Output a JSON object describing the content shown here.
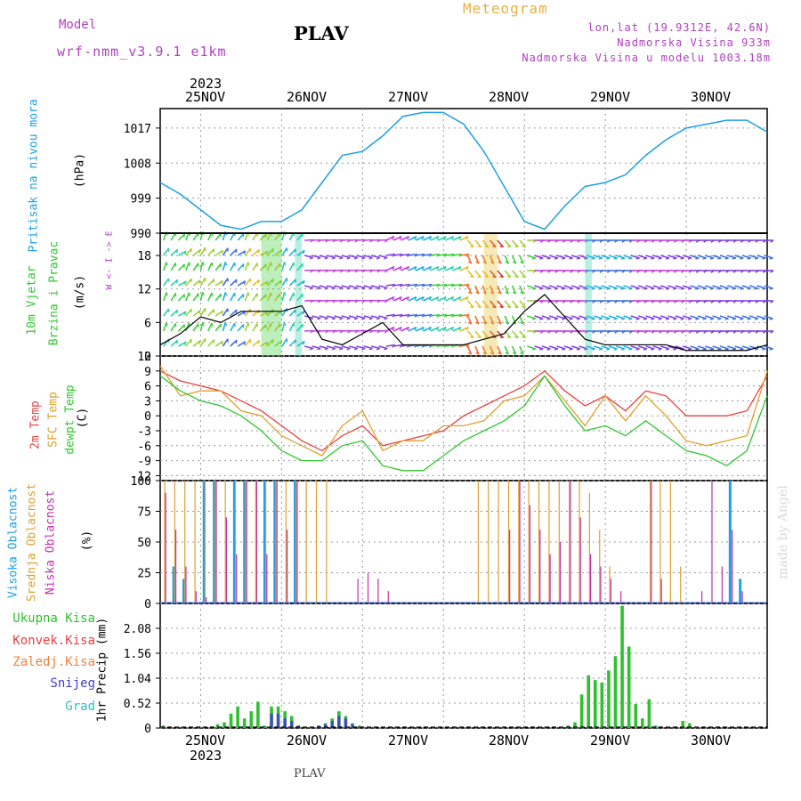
{
  "header": {
    "model_label": "Model",
    "model_name": "wrf-nmm_v3.9.1 e1km",
    "station": "PLAV",
    "title": "Meteogram",
    "lonlat": "lon,lat (19.9312E, 42.6N)",
    "elevation": "Nadmorska Visina 933m",
    "model_elevation": "Nadmorska Visina u modelu 1003.18m",
    "footer_station": "PLAV",
    "watermark": "made by Angel"
  },
  "colors": {
    "pressure": "#1ea0e6",
    "temp2m": "#e84040",
    "sfc_temp": "#e0a030",
    "dewpoint": "#30c830",
    "high_cloud": "#1ea0e6",
    "mid_cloud": "#e0a030",
    "low_cloud": "#c030b0",
    "precip_total": "#30c030",
    "conv": "#e84040",
    "snow": "#4040d0",
    "grad": "#30c0c0"
  },
  "x_axis": {
    "year": "2023",
    "dates": [
      "25NOV",
      "26NOV",
      "27NOV",
      "28NOV",
      "29NOV",
      "30NOV"
    ]
  },
  "panels": {
    "pressure": {
      "label": "Pritisak na nivou mora",
      "unit": "(hPa)",
      "ticks": [
        "1017",
        "1008",
        "999",
        "990"
      ]
    },
    "wind": {
      "label1": "10m Vjetar",
      "label2": "Brzina i Pravac",
      "unit": "(m/s)",
      "ticks": [
        "18",
        "12",
        "6",
        "0"
      ],
      "compass": "W <- I -> E"
    },
    "temp": {
      "label1": "2m Temp",
      "label2": "SFC Temp",
      "label3": "dewpt Temp",
      "unit": "(C)",
      "ticks": [
        "12",
        "9",
        "6",
        "3",
        "0",
        "-3",
        "-6",
        "-9",
        "-12"
      ]
    },
    "cloud": {
      "label1": "Visoka Oblacnost",
      "label2": "Srednja Oblacnost",
      "label3": "Niska Oblacnost",
      "unit": "(%)",
      "ticks": [
        "100",
        "75",
        "50",
        "25",
        "0"
      ]
    },
    "precip": {
      "unit": "1hr Precip (mm)",
      "ticks": [
        "2.08",
        "1.56",
        "1.04",
        "0.52",
        "0"
      ],
      "legend": [
        "Ukupna Kisa",
        "Konvek.Kisa",
        "Zaledj.Kisa",
        "Snijeg",
        "Grad"
      ]
    }
  },
  "chart_data": [
    {
      "type": "line",
      "title": "Pritisak na nivou mora",
      "ylabel": "(hPa)",
      "ylim": [
        990,
        1022
      ],
      "x": [
        0,
        6,
        12,
        18,
        24,
        30,
        36,
        42,
        48,
        54,
        60,
        66,
        72,
        78,
        84,
        90,
        96,
        102,
        108,
        114,
        120,
        126,
        132,
        138,
        144,
        150,
        156,
        162,
        168,
        174,
        180
      ],
      "series": [
        {
          "values": [
            1003,
            1000,
            996,
            992,
            991,
            993,
            993,
            996,
            1003,
            1010,
            1011,
            1015,
            1020,
            1021,
            1021,
            1018,
            1011,
            1002,
            993,
            991,
            997,
            1002,
            1003,
            1005,
            1010,
            1014,
            1017,
            1018,
            1019,
            1019,
            1016
          ]
        }
      ]
    },
    {
      "type": "line",
      "title": "10m Vjetar",
      "ylabel": "(m/s)",
      "ylim": [
        0,
        22
      ],
      "x": [
        0,
        6,
        12,
        18,
        24,
        30,
        36,
        42,
        48,
        54,
        60,
        66,
        72,
        78,
        84,
        90,
        96,
        102,
        108,
        114,
        120,
        126,
        132,
        138,
        144,
        150,
        156,
        162,
        168,
        174,
        180
      ],
      "series": [
        {
          "values": [
            2,
            4,
            7,
            6,
            8,
            8,
            8,
            9,
            3,
            2,
            4,
            6,
            2,
            2,
            2,
            2,
            3,
            4,
            8,
            11,
            7,
            3,
            2,
            2,
            2,
            2,
            1,
            1,
            1,
            1,
            2
          ]
        }
      ]
    },
    {
      "type": "line",
      "title": "2m Temp / SFC Temp / dewpt Temp",
      "ylabel": "(C)",
      "ylim": [
        -13,
        12
      ],
      "x": [
        0,
        6,
        12,
        18,
        24,
        30,
        36,
        42,
        48,
        54,
        60,
        66,
        72,
        78,
        84,
        90,
        96,
        102,
        108,
        114,
        120,
        126,
        132,
        138,
        144,
        150,
        156,
        162,
        168,
        174,
        180
      ],
      "series": [
        {
          "name": "2m Temp",
          "values": [
            9,
            7,
            6,
            5,
            3,
            1,
            -2,
            -5,
            -7,
            -4,
            -2,
            -6,
            -5,
            -4,
            -3,
            0,
            2,
            4,
            6,
            9,
            5,
            2,
            4,
            1,
            5,
            4,
            0,
            0,
            0,
            1,
            8
          ]
        },
        {
          "name": "SFC Temp",
          "values": [
            10,
            4,
            5,
            5,
            1,
            0,
            -4,
            -6,
            -8,
            -2,
            1,
            -7,
            -5,
            -5,
            -2,
            -2,
            -1,
            3,
            4,
            8,
            3,
            -2,
            4,
            -1,
            4,
            0,
            -5,
            -6,
            -5,
            -4,
            9
          ]
        },
        {
          "name": "dewpt Temp",
          "values": [
            8,
            5,
            3,
            2,
            0,
            -3,
            -7,
            -9,
            -9,
            -6,
            -5,
            -10,
            -11,
            -11,
            -8,
            -5,
            -3,
            -1,
            2,
            8,
            2,
            -3,
            -2,
            -4,
            -1,
            -4,
            -7,
            -8,
            -10,
            -7,
            4
          ]
        }
      ]
    },
    {
      "type": "bar",
      "title": "Visoka / Srednja / Niska Oblacnost",
      "ylabel": "(%)",
      "ylim": [
        0,
        100
      ],
      "x": [
        1,
        4,
        7,
        10,
        13,
        16,
        19,
        22,
        25,
        28,
        31,
        34,
        37,
        40,
        43,
        46,
        49,
        52,
        55,
        58,
        61,
        64,
        67,
        70,
        73,
        76,
        79,
        82,
        85,
        88,
        91,
        94,
        97,
        100,
        103,
        106,
        109,
        112,
        115,
        118,
        121,
        124,
        127,
        130,
        133,
        136,
        139,
        142,
        145,
        148,
        151,
        154,
        157,
        160,
        163,
        166,
        169,
        172,
        175,
        178
      ],
      "series": [
        {
          "name": "Visoka Oblacnost",
          "values": [
            0,
            30,
            20,
            0,
            100,
            100,
            0,
            100,
            100,
            0,
            100,
            100,
            0,
            100,
            0,
            0,
            0,
            0,
            0,
            0,
            0,
            0,
            0,
            0,
            0,
            0,
            0,
            0,
            0,
            0,
            0,
            0,
            0,
            0,
            0,
            0,
            0,
            0,
            0,
            0,
            0,
            0,
            0,
            0,
            0,
            0,
            0,
            0,
            0,
            0,
            0,
            0,
            0,
            0,
            0,
            0,
            100,
            20,
            0,
            0
          ]
        },
        {
          "name": "Srednja Oblacnost",
          "values": [
            100,
            100,
            100,
            100,
            100,
            100,
            100,
            100,
            100,
            100,
            100,
            100,
            100,
            100,
            100,
            100,
            100,
            0,
            0,
            0,
            0,
            0,
            0,
            0,
            0,
            0,
            0,
            0,
            0,
            0,
            0,
            100,
            100,
            100,
            100,
            100,
            100,
            100,
            100,
            100,
            100,
            100,
            90,
            60,
            30,
            0,
            0,
            0,
            100,
            100,
            100,
            30,
            0,
            0,
            0,
            0,
            0,
            0,
            0,
            0
          ]
        },
        {
          "name": "Niska Oblacnost",
          "values": [
            90,
            60,
            30,
            10,
            5,
            100,
            70,
            40,
            100,
            100,
            40,
            100,
            60,
            100,
            0,
            0,
            0,
            0,
            0,
            20,
            25,
            20,
            10,
            0,
            0,
            0,
            0,
            0,
            0,
            0,
            0,
            0,
            0,
            0,
            60,
            100,
            80,
            60,
            40,
            50,
            100,
            70,
            40,
            30,
            20,
            10,
            0,
            0,
            100,
            20,
            0,
            0,
            0,
            10,
            100,
            30,
            60,
            10,
            0,
            0
          ]
        }
      ]
    },
    {
      "type": "bar",
      "title": "1hr Precip",
      "ylabel": "1hr Precip (mm)",
      "ylim": [
        0,
        2.6
      ],
      "x": [
        1,
        3,
        5,
        7,
        9,
        11,
        13,
        15,
        17,
        19,
        21,
        23,
        25,
        27,
        29,
        31,
        33,
        35,
        37,
        39,
        41,
        43,
        45,
        47,
        49,
        51,
        53,
        55,
        57,
        59,
        61,
        63,
        65,
        67,
        69,
        71,
        73,
        75,
        77,
        79,
        81,
        83,
        85,
        87,
        89,
        91,
        93,
        95,
        97,
        99,
        101,
        103,
        105,
        107,
        109,
        111,
        113,
        115,
        117,
        119,
        121,
        123,
        125,
        127,
        129,
        131,
        133,
        135,
        137,
        139,
        141,
        143,
        145,
        147,
        149,
        151,
        153,
        155,
        157,
        159,
        161,
        163,
        165,
        167,
        169,
        171,
        173,
        175,
        177,
        179
      ],
      "series": [
        {
          "name": "Ukupna Kisa",
          "values": [
            0.05,
            0,
            0,
            0,
            0,
            0,
            0,
            0,
            0.08,
            0.12,
            0.3,
            0.45,
            0.2,
            0.35,
            0.55,
            0.05,
            0.45,
            0.45,
            0.35,
            0.25,
            0.05,
            0.02,
            0.02,
            0.05,
            0.1,
            0.2,
            0.35,
            0.25,
            0.1,
            0.05,
            0.02,
            0,
            0,
            0,
            0,
            0,
            0,
            0,
            0,
            0,
            0,
            0,
            0,
            0,
            0,
            0,
            0,
            0,
            0,
            0,
            0,
            0,
            0,
            0,
            0,
            0,
            0,
            0,
            0,
            0,
            0.05,
            0.12,
            0.7,
            1.1,
            1.0,
            0.95,
            1.2,
            1.5,
            2.55,
            1.7,
            0.5,
            0.2,
            0.6,
            0.05,
            0,
            0,
            0,
            0.15,
            0.1,
            0.02,
            0,
            0,
            0,
            0,
            0,
            0,
            0,
            0,
            0,
            0
          ]
        },
        {
          "name": "Snijeg",
          "values": [
            0,
            0,
            0,
            0,
            0,
            0,
            0,
            0,
            0,
            0,
            0,
            0,
            0,
            0,
            0,
            0,
            0.3,
            0.3,
            0.2,
            0.15,
            0.05,
            0.02,
            0.02,
            0.05,
            0.08,
            0.15,
            0.25,
            0.2,
            0.08,
            0.03,
            0.02,
            0,
            0,
            0,
            0,
            0,
            0,
            0,
            0,
            0,
            0,
            0,
            0,
            0,
            0,
            0,
            0,
            0,
            0,
            0,
            0,
            0,
            0,
            0,
            0,
            0,
            0,
            0,
            0,
            0,
            0,
            0,
            0,
            0,
            0,
            0,
            0,
            0,
            0,
            0,
            0,
            0,
            0,
            0,
            0,
            0,
            0,
            0,
            0,
            0,
            0,
            0,
            0,
            0,
            0,
            0,
            0,
            0,
            0,
            0
          ]
        }
      ]
    }
  ]
}
